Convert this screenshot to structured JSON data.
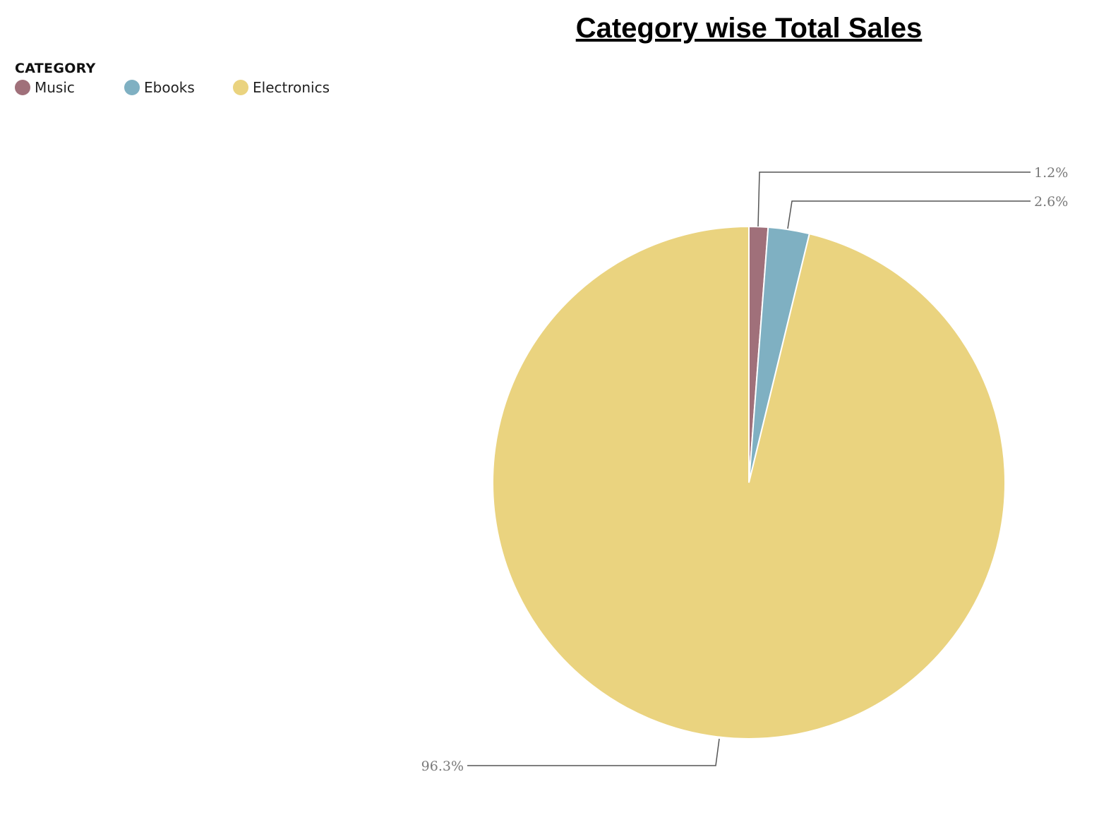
{
  "chart_data": {
    "type": "pie",
    "title": "Category wise Total Sales",
    "legend": {
      "title": "CATEGORY",
      "position": "top-left"
    },
    "slices": [
      {
        "name": "Music",
        "value": 1.2,
        "label": "1.2%",
        "color": "#a0707a"
      },
      {
        "name": "Ebooks",
        "value": 2.6,
        "label": "2.6%",
        "color": "#7fb0c2"
      },
      {
        "name": "Electronics",
        "value": 96.3,
        "label": "96.3%",
        "color": "#ead37f"
      }
    ]
  }
}
